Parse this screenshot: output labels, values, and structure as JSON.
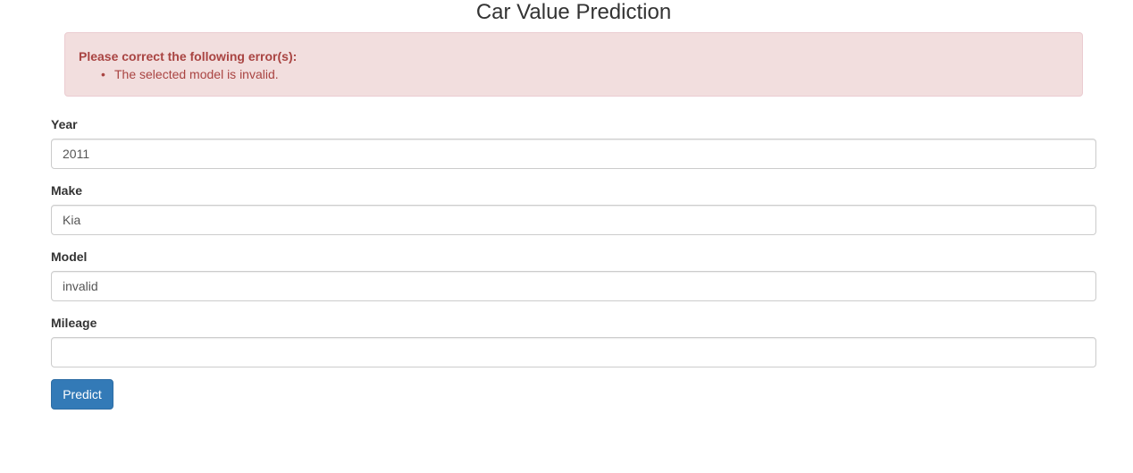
{
  "page": {
    "title": "Car Value Prediction"
  },
  "error_alert": {
    "heading": "Please correct the following error(s):",
    "bullet": "•",
    "errors": [
      "The selected model is invalid."
    ]
  },
  "form": {
    "fields": [
      {
        "label": "Year",
        "value": "2011",
        "placeholder": ""
      },
      {
        "label": "Make",
        "value": "Kia",
        "placeholder": ""
      },
      {
        "label": "Model",
        "value": "invalid",
        "placeholder": ""
      },
      {
        "label": "Mileage",
        "value": "",
        "placeholder": ""
      }
    ],
    "submit_label": "Predict"
  },
  "colors": {
    "alert_bg": "#f2dede",
    "alert_border": "#ebccd1",
    "alert_text": "#a94442",
    "primary": "#337ab7"
  }
}
